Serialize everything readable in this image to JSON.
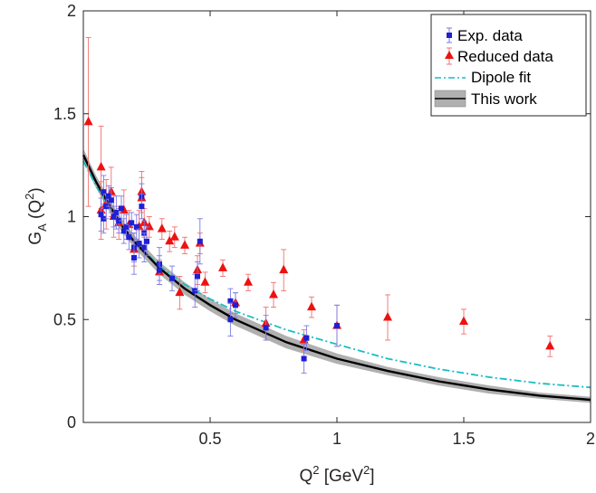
{
  "chart_data": {
    "type": "scatter",
    "xlim": [
      0,
      2
    ],
    "ylim": [
      0,
      2
    ],
    "x_ticks": [
      0.5,
      1,
      1.5,
      2
    ],
    "x_tick_labels": [
      "0.5",
      "1",
      "1.5",
      "2"
    ],
    "y_ticks": [
      0,
      0.5,
      1,
      1.5,
      2
    ],
    "y_tick_labels": [
      "0",
      "0.5",
      "1",
      "1.5",
      "2"
    ],
    "xlabel": {
      "main": "Q",
      "sup": "2",
      "rest": " [GeV",
      "sup2": "2",
      "end": "]"
    },
    "ylabel": {
      "main": "G",
      "sub": "A",
      "rest": " (Q",
      "sup": "2",
      "end": ")"
    },
    "grid": false,
    "legend_position": "top-right",
    "legend": [
      "Exp. data",
      "Reduced data",
      "Dipole fit",
      "This work"
    ],
    "colors": {
      "exp": "#1f1fd6",
      "exp_err": "#7a7ae6",
      "reduced": "#ee1111",
      "reduced_err": "#f07070",
      "dipole": "#19bcc4",
      "band": "#b0b0b0",
      "center": "#000000"
    },
    "series": [
      {
        "name": "Exp. data",
        "marker": "square",
        "points": [
          [
            0.07,
            1.01,
            0.08
          ],
          [
            0.08,
            1.12,
            0.08
          ],
          [
            0.08,
            0.99,
            0.07
          ],
          [
            0.09,
            1.05,
            0.06
          ],
          [
            0.1,
            1.1,
            0.05
          ],
          [
            0.11,
            1.08,
            0.06
          ],
          [
            0.12,
            1.0,
            0.05
          ],
          [
            0.13,
            1.02,
            0.08
          ],
          [
            0.14,
            0.98,
            0.06
          ],
          [
            0.15,
            1.04,
            0.06
          ],
          [
            0.16,
            0.93,
            0.06
          ],
          [
            0.17,
            0.95,
            0.06
          ],
          [
            0.18,
            0.9,
            0.06
          ],
          [
            0.19,
            0.97,
            0.05
          ],
          [
            0.2,
            0.85,
            0.07
          ],
          [
            0.2,
            0.8,
            0.08
          ],
          [
            0.21,
            0.95,
            0.06
          ],
          [
            0.22,
            0.87,
            0.07
          ],
          [
            0.23,
            1.1,
            0.06
          ],
          [
            0.23,
            1.05,
            0.06
          ],
          [
            0.24,
            0.92,
            0.06
          ],
          [
            0.24,
            0.85,
            0.07
          ],
          [
            0.25,
            0.88,
            0.07
          ],
          [
            0.3,
            0.77,
            0.08
          ],
          [
            0.3,
            0.74,
            0.07
          ],
          [
            0.35,
            0.7,
            0.06
          ],
          [
            0.44,
            0.64,
            0.08
          ],
          [
            0.45,
            0.71,
            0.07
          ],
          [
            0.46,
            0.88,
            0.11
          ],
          [
            0.58,
            0.59,
            0.06
          ],
          [
            0.58,
            0.5,
            0.08
          ],
          [
            0.6,
            0.57,
            0.06
          ],
          [
            0.72,
            0.46,
            0.06
          ],
          [
            0.87,
            0.31,
            0.07
          ],
          [
            0.88,
            0.41,
            0.06
          ],
          [
            1.0,
            0.47,
            0.1
          ]
        ]
      },
      {
        "name": "Reduced data",
        "marker": "triangle",
        "points": [
          [
            0.02,
            1.46,
            0.41
          ],
          [
            0.07,
            1.24,
            0.2
          ],
          [
            0.07,
            1.03,
            0.14
          ],
          [
            0.09,
            1.06,
            0.12
          ],
          [
            0.11,
            1.12,
            0.12
          ],
          [
            0.12,
            1.0,
            0.1
          ],
          [
            0.14,
            0.97,
            0.08
          ],
          [
            0.16,
            1.03,
            0.1
          ],
          [
            0.18,
            0.96,
            0.07
          ],
          [
            0.2,
            0.84,
            0.08
          ],
          [
            0.22,
            0.95,
            0.08
          ],
          [
            0.23,
            1.12,
            0.1
          ],
          [
            0.23,
            1.09,
            0.1
          ],
          [
            0.24,
            0.97,
            0.07
          ],
          [
            0.26,
            0.95,
            0.05
          ],
          [
            0.3,
            0.73,
            0.06
          ],
          [
            0.31,
            0.94,
            0.05
          ],
          [
            0.34,
            0.88,
            0.05
          ],
          [
            0.36,
            0.9,
            0.05
          ],
          [
            0.38,
            0.63,
            0.08
          ],
          [
            0.4,
            0.86,
            0.04
          ],
          [
            0.45,
            0.74,
            0.07
          ],
          [
            0.46,
            0.87,
            0.05
          ],
          [
            0.48,
            0.68,
            0.05
          ],
          [
            0.55,
            0.75,
            0.04
          ],
          [
            0.6,
            0.58,
            0.05
          ],
          [
            0.65,
            0.68,
            0.04
          ],
          [
            0.72,
            0.48,
            0.08
          ],
          [
            0.75,
            0.62,
            0.06
          ],
          [
            0.79,
            0.74,
            0.1
          ],
          [
            0.87,
            0.4,
            0.05
          ],
          [
            0.9,
            0.56,
            0.05
          ],
          [
            1.0,
            0.47,
            0.1
          ],
          [
            1.2,
            0.51,
            0.11
          ],
          [
            1.5,
            0.49,
            0.06
          ],
          [
            1.84,
            0.37,
            0.05
          ]
        ]
      },
      {
        "name": "Dipole fit",
        "style": "dash-dot",
        "x": [
          0.0,
          0.05,
          0.1,
          0.15,
          0.2,
          0.3,
          0.4,
          0.5,
          0.6,
          0.8,
          1.0,
          1.2,
          1.4,
          1.6,
          1.8,
          2.0
        ],
        "y": [
          1.27,
          1.15,
          1.05,
          0.96,
          0.88,
          0.76,
          0.67,
          0.6,
          0.54,
          0.45,
          0.38,
          0.31,
          0.26,
          0.22,
          0.19,
          0.17
        ]
      },
      {
        "name": "This work",
        "style": "band",
        "x": [
          0.0,
          0.05,
          0.1,
          0.15,
          0.2,
          0.3,
          0.4,
          0.5,
          0.6,
          0.8,
          1.0,
          1.2,
          1.4,
          1.6,
          1.8,
          2.0
        ],
        "y": [
          1.3,
          1.17,
          1.06,
          0.96,
          0.88,
          0.75,
          0.65,
          0.57,
          0.5,
          0.39,
          0.31,
          0.25,
          0.2,
          0.16,
          0.13,
          0.11
        ],
        "lower": [
          1.27,
          1.14,
          1.03,
          0.93,
          0.85,
          0.72,
          0.62,
          0.54,
          0.47,
          0.36,
          0.285,
          0.23,
          0.18,
          0.14,
          0.115,
          0.095
        ],
        "upper": [
          1.33,
          1.2,
          1.09,
          0.99,
          0.91,
          0.78,
          0.68,
          0.6,
          0.53,
          0.42,
          0.335,
          0.27,
          0.22,
          0.18,
          0.145,
          0.125
        ]
      }
    ]
  }
}
